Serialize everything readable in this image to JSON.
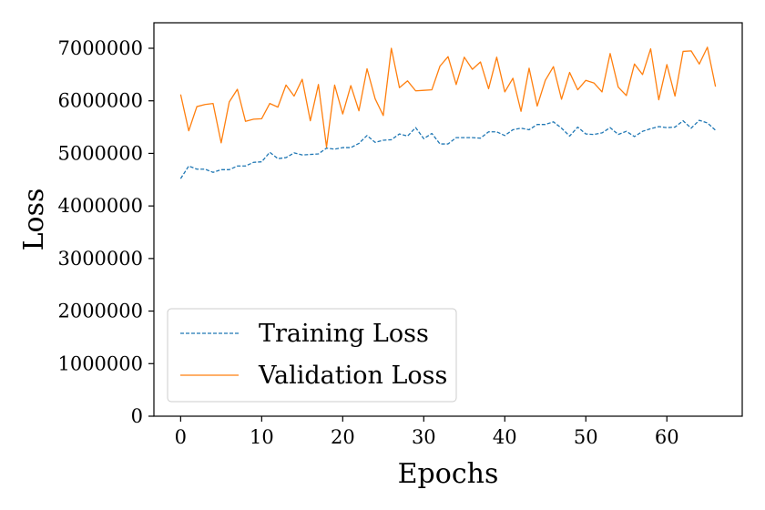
{
  "chart_data": {
    "type": "line",
    "title": "",
    "xlabel": "Epochs",
    "ylabel": "Loss",
    "xlim": [
      -3.3,
      69.3
    ],
    "ylim": [
      0,
      7000000
    ],
    "x_ticks": [
      0,
      10,
      20,
      30,
      40,
      50,
      60
    ],
    "y_ticks": [
      0,
      1000000,
      2000000,
      3000000,
      4000000,
      5000000,
      6000000,
      7000000
    ],
    "grid": false,
    "legend_position": "lower-left",
    "x": [
      0,
      1,
      2,
      3,
      4,
      5,
      6,
      7,
      8,
      9,
      10,
      11,
      12,
      13,
      14,
      15,
      16,
      17,
      18,
      19,
      20,
      21,
      22,
      23,
      24,
      25,
      26,
      27,
      28,
      29,
      30,
      31,
      32,
      33,
      34,
      35,
      36,
      37,
      38,
      39,
      40,
      41,
      42,
      43,
      44,
      45,
      46,
      47,
      48,
      49,
      50,
      51,
      52,
      53,
      54,
      55,
      56,
      57,
      58,
      59,
      60,
      61,
      62,
      63,
      64,
      65,
      66
    ],
    "series": [
      {
        "name": "Training Loss",
        "color": "#1f77b4",
        "style": "dashed",
        "values": [
          4520000,
          4760000,
          4700000,
          4700000,
          4640000,
          4690000,
          4690000,
          4760000,
          4760000,
          4830000,
          4840000,
          5020000,
          4900000,
          4920000,
          5010000,
          4970000,
          4980000,
          4990000,
          5100000,
          5080000,
          5110000,
          5110000,
          5190000,
          5340000,
          5210000,
          5250000,
          5260000,
          5370000,
          5330000,
          5490000,
          5280000,
          5380000,
          5180000,
          5180000,
          5300000,
          5300000,
          5300000,
          5290000,
          5410000,
          5410000,
          5340000,
          5450000,
          5480000,
          5450000,
          5550000,
          5550000,
          5600000,
          5480000,
          5330000,
          5500000,
          5370000,
          5360000,
          5390000,
          5490000,
          5360000,
          5420000,
          5320000,
          5420000,
          5470000,
          5510000,
          5490000,
          5500000,
          5620000,
          5480000,
          5630000,
          5580000,
          5440000
        ]
      },
      {
        "name": "Validation Loss",
        "color": "#ff7f0e",
        "style": "solid",
        "values": [
          6120000,
          5430000,
          5890000,
          5930000,
          5950000,
          5200000,
          5980000,
          6220000,
          5610000,
          5650000,
          5660000,
          5950000,
          5880000,
          6300000,
          6090000,
          6410000,
          5620000,
          6310000,
          5120000,
          6300000,
          5750000,
          6290000,
          5810000,
          6610000,
          6040000,
          5720000,
          7000000,
          6250000,
          6380000,
          6190000,
          6200000,
          6210000,
          6660000,
          6840000,
          6310000,
          6830000,
          6600000,
          6740000,
          6230000,
          6830000,
          6170000,
          6430000,
          5800000,
          6620000,
          5900000,
          6390000,
          6650000,
          6030000,
          6540000,
          6210000,
          6390000,
          6340000,
          6170000,
          6900000,
          6260000,
          6100000,
          6700000,
          6500000,
          6990000,
          6020000,
          6690000,
          6090000,
          6940000,
          6950000,
          6700000,
          7020000,
          6270000
        ]
      }
    ]
  }
}
